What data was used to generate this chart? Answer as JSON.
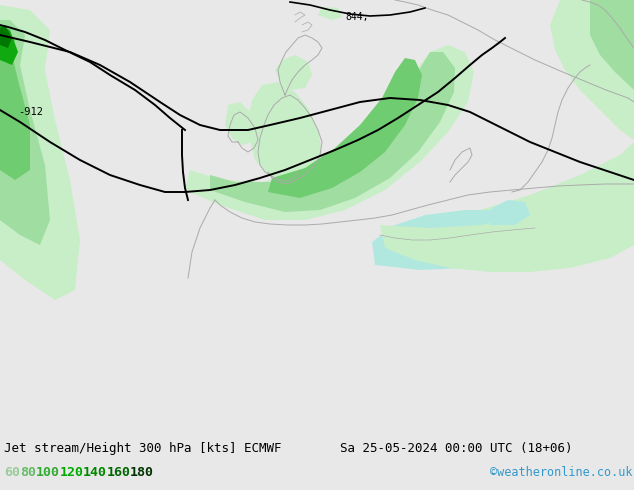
{
  "title_left": "Jet stream/Height 300 hPa [kts] ECMWF",
  "title_right": "Sa 25-05-2024 00:00 UTC (18+06)",
  "credit": "©weatheronline.co.uk",
  "legend_values": [
    "60",
    "80",
    "100",
    "120",
    "140",
    "160",
    "180"
  ],
  "legend_colors": [
    "#aaddaa",
    "#77cc77",
    "#44bb44",
    "#22aa22",
    "#119911",
    "#007700",
    "#004400"
  ],
  "bg_color": "#e8e8e8",
  "map_bg": "#f0f0f0",
  "figsize": [
    6.34,
    4.9
  ],
  "dpi": 100,
  "bottom_strip_color": "#d4d4d4",
  "coast_color": "#aaaaaa",
  "contour_color": "#000000",
  "label_912": "-912",
  "label_844": "844,",
  "green_l1": "#c8eec8",
  "green_l2": "#a0dda0",
  "green_l3": "#70cc70",
  "green_l4": "#40bb40",
  "green_l5": "#10aa10",
  "green_l6": "#007700",
  "green_l7": "#004400",
  "teal_light": "#b0e8e0"
}
